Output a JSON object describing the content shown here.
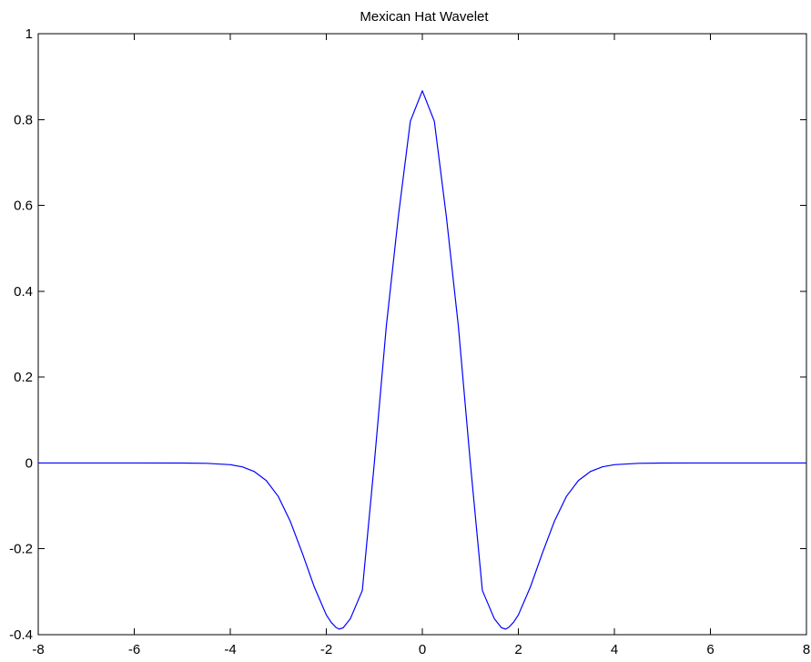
{
  "chart_data": {
    "type": "line",
    "title": "Mexican Hat Wavelet",
    "xlabel": "",
    "ylabel": "",
    "xlim": [
      -8,
      8
    ],
    "ylim": [
      -0.4,
      1
    ],
    "grid": false,
    "x_ticks": [
      -8,
      -6,
      -4,
      -2,
      0,
      2,
      4,
      6,
      8
    ],
    "x_tick_labels": [
      "-8",
      "-6",
      "-4",
      "-2",
      "0",
      "2",
      "4",
      "6",
      "8"
    ],
    "y_ticks": [
      -0.4,
      -0.2,
      0,
      0.2,
      0.4,
      0.6,
      0.8,
      1
    ],
    "y_tick_labels": [
      "-0.4",
      "-0.2",
      "0",
      "0.2",
      "0.4",
      "0.6",
      "0.8",
      "1"
    ],
    "line_color": "#0000ff",
    "series": [
      {
        "x": [
          -8,
          -7,
          -6,
          -5,
          -4.5,
          -4,
          -3.75,
          -3.5,
          -3.25,
          -3,
          -2.75,
          -2.5,
          -2.25,
          -2,
          -1.9,
          -1.8,
          -1.732,
          -1.65,
          -1.5,
          -1.25,
          -1,
          -0.75,
          -0.5,
          -0.25,
          0,
          0.25,
          0.5,
          0.75,
          1,
          1.25,
          1.5,
          1.65,
          1.732,
          1.8,
          1.9,
          2,
          2.25,
          2.5,
          2.75,
          3,
          3.25,
          3.5,
          3.75,
          4,
          4.5,
          5,
          6,
          7,
          8
        ],
        "y": [
          0,
          0,
          0,
          -0.0001,
          -0.0008,
          -0.004,
          -0.009,
          -0.02,
          -0.041,
          -0.078,
          -0.136,
          -0.21,
          -0.289,
          -0.354,
          -0.371,
          -0.383,
          -0.387,
          -0.384,
          -0.363,
          -0.297,
          0,
          0.319,
          0.574,
          0.796,
          0.867,
          0.796,
          0.574,
          0.319,
          0,
          -0.297,
          -0.363,
          -0.384,
          -0.387,
          -0.383,
          -0.371,
          -0.354,
          -0.289,
          -0.21,
          -0.136,
          -0.078,
          -0.041,
          -0.02,
          -0.009,
          -0.004,
          -0.0008,
          -0.0001,
          0,
          0,
          0
        ]
      }
    ]
  }
}
